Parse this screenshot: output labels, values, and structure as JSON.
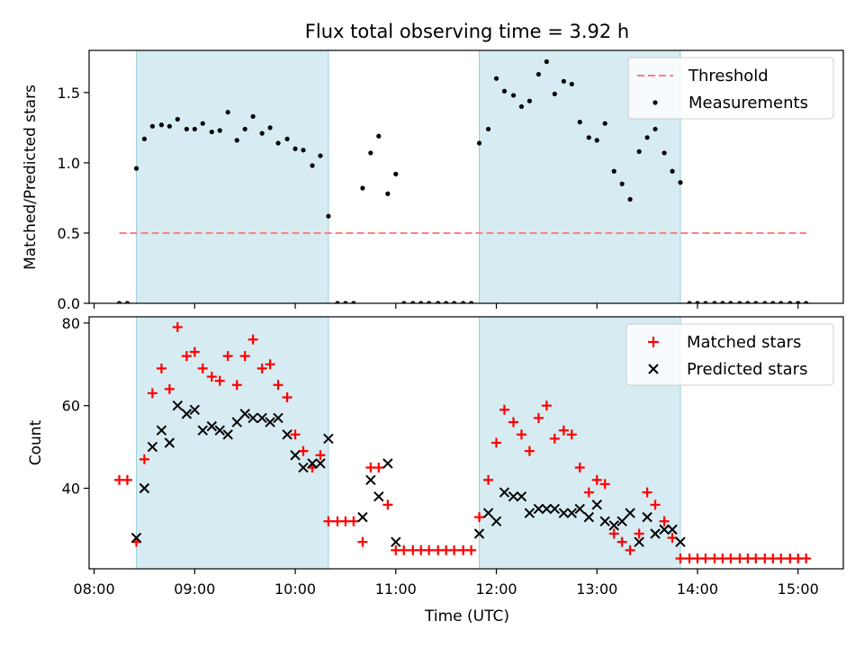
{
  "chart_data": [
    {
      "type": "scatter",
      "title": "Flux total observing time = 3.92 h",
      "xlabel": "",
      "ylabel": "Matched/Predicted stars",
      "xlim": [
        7.95,
        15.45
      ],
      "ylim": [
        0,
        1.8
      ],
      "yticks": [
        0.0,
        0.5,
        1.0,
        1.5
      ],
      "ytick_labels": [
        "0.0",
        "0.5",
        "1.0",
        "1.5"
      ],
      "shaded_intervals": [
        [
          8.42,
          10.33
        ],
        [
          11.83,
          13.83
        ]
      ],
      "legend_position": "top-right",
      "threshold": {
        "name": "Threshold",
        "value": 0.5,
        "x_range": [
          8.25,
          15.08
        ],
        "color": "#ff7f7f"
      },
      "series": [
        {
          "name": "Measurements",
          "color": "#000000",
          "marker": "dot",
          "x": [
            8.25,
            8.33,
            8.42,
            8.5,
            8.58,
            8.67,
            8.75,
            8.83,
            8.92,
            9.0,
            9.08,
            9.17,
            9.25,
            9.33,
            9.42,
            9.5,
            9.58,
            9.67,
            9.75,
            9.83,
            9.92,
            10.0,
            10.08,
            10.17,
            10.25,
            10.33,
            10.42,
            10.5,
            10.58,
            10.67,
            10.75,
            10.83,
            10.92,
            11.0,
            11.08,
            11.17,
            11.25,
            11.33,
            11.42,
            11.5,
            11.58,
            11.67,
            11.75,
            11.83,
            11.92,
            12.0,
            12.08,
            12.17,
            12.25,
            12.33,
            12.42,
            12.5,
            12.58,
            12.67,
            12.75,
            12.83,
            12.92,
            13.0,
            13.08,
            13.17,
            13.25,
            13.33,
            13.42,
            13.5,
            13.58,
            13.67,
            13.75,
            13.83,
            13.92,
            14.0,
            14.08,
            14.17,
            14.25,
            14.33,
            14.42,
            14.5,
            14.58,
            14.67,
            14.75,
            14.83,
            14.92,
            15.0,
            15.08
          ],
          "values": [
            0,
            0,
            0.96,
            1.17,
            1.26,
            1.27,
            1.26,
            1.31,
            1.24,
            1.24,
            1.28,
            1.22,
            1.23,
            1.36,
            1.16,
            1.24,
            1.33,
            1.21,
            1.25,
            1.14,
            1.17,
            1.1,
            1.09,
            0.98,
            1.05,
            0.62,
            0,
            0,
            0,
            0.82,
            1.07,
            1.19,
            0.78,
            0.92,
            0,
            0,
            0,
            0,
            0,
            0,
            0,
            0,
            0,
            1.14,
            1.24,
            1.6,
            1.51,
            1.48,
            1.4,
            1.44,
            1.63,
            1.72,
            1.49,
            1.58,
            1.56,
            1.29,
            1.18,
            1.16,
            1.28,
            0.94,
            0.85,
            0.74,
            1.08,
            1.18,
            1.24,
            1.07,
            0.94,
            0.86,
            0,
            0,
            0,
            0,
            0,
            0,
            0,
            0,
            0,
            0,
            0,
            0,
            0,
            0,
            0
          ]
        }
      ]
    },
    {
      "type": "scatter",
      "title": "",
      "xlabel": "Time (UTC)",
      "ylabel": "Count",
      "xlim": [
        7.95,
        15.45
      ],
      "ylim": [
        20.5,
        81.5
      ],
      "yticks": [
        40,
        60,
        80
      ],
      "ytick_labels": [
        "40",
        "60",
        "80"
      ],
      "xticks": [
        8,
        9,
        10,
        11,
        12,
        13,
        14,
        15
      ],
      "xtick_labels": [
        "08:00",
        "09:00",
        "10:00",
        "11:00",
        "12:00",
        "13:00",
        "14:00",
        "15:00"
      ],
      "shaded_intervals": [
        [
          8.42,
          10.33
        ],
        [
          11.83,
          13.83
        ]
      ],
      "legend_position": "top-right",
      "series": [
        {
          "name": "Matched stars",
          "color": "#ff0000",
          "marker": "plus",
          "x": [
            8.25,
            8.33,
            8.42,
            8.5,
            8.58,
            8.67,
            8.75,
            8.83,
            8.92,
            9.0,
            9.08,
            9.17,
            9.25,
            9.33,
            9.42,
            9.5,
            9.58,
            9.67,
            9.75,
            9.83,
            9.92,
            10.0,
            10.08,
            10.17,
            10.25,
            10.33,
            10.42,
            10.5,
            10.58,
            10.67,
            10.75,
            10.83,
            10.92,
            11.0,
            11.08,
            11.17,
            11.25,
            11.33,
            11.42,
            11.5,
            11.58,
            11.67,
            11.75,
            11.83,
            11.92,
            12.0,
            12.08,
            12.17,
            12.25,
            12.33,
            12.42,
            12.5,
            12.58,
            12.67,
            12.75,
            12.83,
            12.92,
            13.0,
            13.08,
            13.17,
            13.25,
            13.33,
            13.42,
            13.5,
            13.58,
            13.67,
            13.75,
            13.83,
            13.92,
            14.0,
            14.08,
            14.17,
            14.25,
            14.33,
            14.42,
            14.5,
            14.58,
            14.67,
            14.75,
            14.83,
            14.92,
            15.0,
            15.08
          ],
          "values": [
            42,
            42,
            27,
            47,
            63,
            69,
            64,
            79,
            72,
            73,
            69,
            67,
            66,
            72,
            65,
            72,
            76,
            69,
            70,
            65,
            62,
            53,
            49,
            45,
            48,
            32,
            32,
            32,
            32,
            27,
            45,
            45,
            36,
            25,
            25,
            25,
            25,
            25,
            25,
            25,
            25,
            25,
            25,
            33,
            42,
            51,
            59,
            56,
            53,
            49,
            57,
            60,
            52,
            54,
            53,
            45,
            39,
            42,
            41,
            29,
            27,
            25,
            29,
            39,
            36,
            32,
            28,
            23,
            23,
            23,
            23,
            23,
            23,
            23,
            23,
            23,
            23,
            23,
            23,
            23,
            23,
            23,
            23
          ]
        },
        {
          "name": "Predicted stars",
          "color": "#000000",
          "marker": "x",
          "x": [
            8.42,
            8.5,
            8.58,
            8.67,
            8.75,
            8.83,
            8.92,
            9.0,
            9.08,
            9.17,
            9.25,
            9.33,
            9.42,
            9.5,
            9.58,
            9.67,
            9.75,
            9.83,
            9.92,
            10.0,
            10.08,
            10.17,
            10.25,
            10.33,
            10.67,
            10.75,
            10.83,
            10.92,
            11.0,
            11.83,
            11.92,
            12.0,
            12.08,
            12.17,
            12.25,
            12.33,
            12.42,
            12.5,
            12.58,
            12.67,
            12.75,
            12.83,
            12.92,
            13.0,
            13.08,
            13.17,
            13.25,
            13.33,
            13.42,
            13.5,
            13.58,
            13.67,
            13.75,
            13.83
          ],
          "values": [
            28,
            40,
            50,
            54,
            51,
            60,
            58,
            59,
            54,
            55,
            54,
            53,
            56,
            58,
            57,
            57,
            56,
            57,
            53,
            48,
            45,
            46,
            46,
            52,
            33,
            42,
            38,
            46,
            27,
            29,
            34,
            32,
            39,
            38,
            38,
            34,
            35,
            35,
            35,
            34,
            34,
            35,
            33,
            36,
            32,
            31,
            32,
            34,
            27,
            33,
            29,
            30,
            30,
            27
          ]
        }
      ]
    }
  ]
}
